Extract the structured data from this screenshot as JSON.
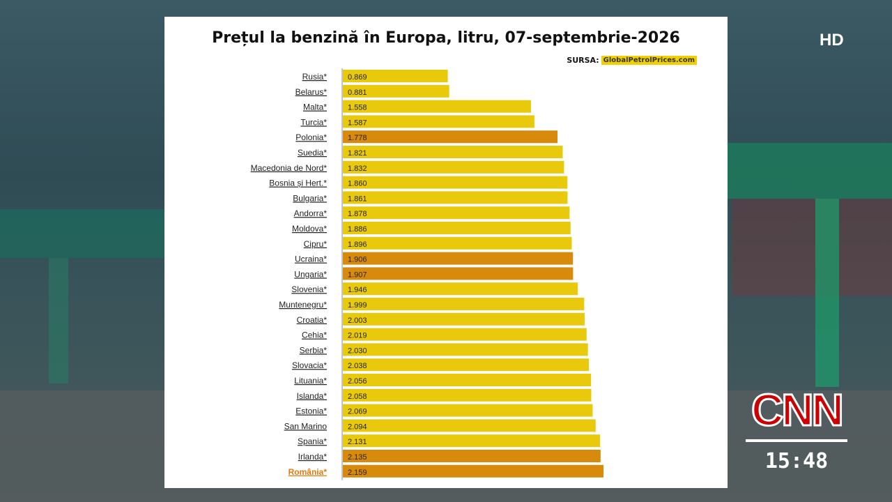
{
  "overlay": {
    "hd_badge": "HD",
    "network_logo": "CNN",
    "clock": "15:48"
  },
  "colors": {
    "bar_default": "#e8c90c",
    "bar_highlight": "#d88a0c",
    "label_highlight": "#e07a10",
    "label_default": "#222222"
  },
  "source": {
    "label": "SURSA:",
    "badge": "GlobalPetrolPrices.com"
  },
  "chart_data": {
    "type": "bar",
    "orientation": "horizontal",
    "title": "Prețul la benzină în Europa, litru, 07-septembrie-2026",
    "categories": [
      "Rusia*",
      "Belarus*",
      "Malta*",
      "Turcia*",
      "Polonia*",
      "Suedia*",
      "Macedonia de Nord*",
      "Bosnia și Hert.*",
      "Bulgaria*",
      "Andorra*",
      "Moldova*",
      "Cipru*",
      "Ucraina*",
      "Ungaria*",
      "Slovenia*",
      "Muntenegru*",
      "Croatia*",
      "Cehia*",
      "Serbia*",
      "Slovacia*",
      "Lituania*",
      "Islanda*",
      "Estonia*",
      "San Marino",
      "Spania*",
      "Irlanda*",
      "România*"
    ],
    "values": [
      "0.869",
      "0.881",
      "1.558",
      "1.587",
      "1.778",
      "1.821",
      "1.832",
      "1.860",
      "1.861",
      "1.878",
      "1.886",
      "1.896",
      "1.906",
      "1.907",
      "1.946",
      "1.999",
      "2.003",
      "2.019",
      "2.030",
      "2.038",
      "2.056",
      "2.058",
      "2.069",
      "2.094",
      "2.131",
      "2.135",
      "2.159"
    ],
    "highlighted": [
      "Polonia*",
      "Ucraina*",
      "Ungaria*",
      "Irlanda*",
      "România*"
    ],
    "highlighted_label": [
      "România*"
    ],
    "xlim": [
      0,
      2.159
    ],
    "grid": false,
    "legend": "none"
  }
}
